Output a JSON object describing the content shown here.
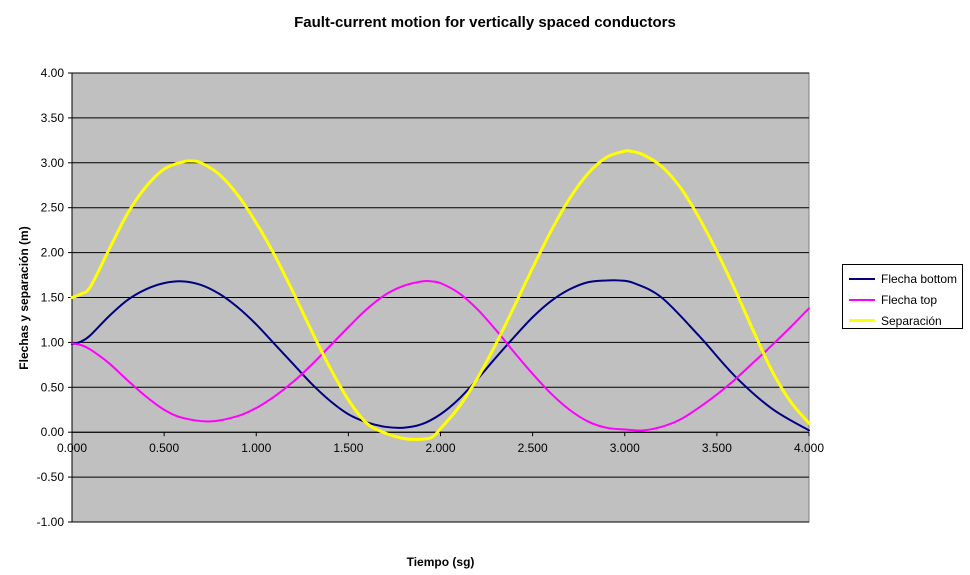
{
  "chart_data": {
    "type": "line",
    "title": "Fault-current motion for vertically spaced conductors",
    "xlabel": "Tiempo (sg)",
    "ylabel": "Flechas y separación (m)",
    "xlim": [
      0,
      4
    ],
    "ylim": [
      -1,
      4
    ],
    "x_ticks": [
      "0.000",
      "0.500",
      "1.000",
      "1.500",
      "2.000",
      "2.500",
      "3.000",
      "3.500",
      "4.000"
    ],
    "y_ticks": [
      "4.00",
      "3.50",
      "3.00",
      "2.50",
      "2.00",
      "1.50",
      "1.00",
      "0.50",
      "0.00",
      "-0.50",
      "-1.00"
    ],
    "grid": "horizontal",
    "background": "#c0c0c0",
    "legend_position": "right",
    "series": [
      {
        "name": "Flecha bottom",
        "color": "#000080",
        "x": [
          0.0,
          0.05,
          0.1,
          0.2,
          0.3,
          0.4,
          0.5,
          0.6,
          0.7,
          0.8,
          0.9,
          1.0,
          1.1,
          1.2,
          1.3,
          1.4,
          1.5,
          1.6,
          1.7,
          1.8,
          1.9,
          2.0,
          2.1,
          2.2,
          2.3,
          2.4,
          2.5,
          2.6,
          2.7,
          2.8,
          2.9,
          2.97,
          3.05,
          3.2,
          3.4,
          3.6,
          3.8,
          4.0
        ],
        "values": [
          0.98,
          1.01,
          1.08,
          1.29,
          1.47,
          1.59,
          1.66,
          1.68,
          1.64,
          1.54,
          1.39,
          1.2,
          0.98,
          0.76,
          0.54,
          0.35,
          0.2,
          0.11,
          0.06,
          0.05,
          0.09,
          0.2,
          0.37,
          0.59,
          0.83,
          1.06,
          1.28,
          1.46,
          1.59,
          1.67,
          1.69,
          1.69,
          1.66,
          1.5,
          1.08,
          0.62,
          0.26,
          0.02
        ]
      },
      {
        "name": "Flecha top",
        "color": "#ff00ff",
        "x": [
          0.0,
          0.05,
          0.1,
          0.2,
          0.3,
          0.4,
          0.5,
          0.6,
          0.75,
          0.9,
          1.0,
          1.1,
          1.2,
          1.3,
          1.4,
          1.5,
          1.6,
          1.7,
          1.8,
          1.9,
          1.95,
          2.0,
          2.1,
          2.2,
          2.3,
          2.4,
          2.5,
          2.6,
          2.7,
          2.8,
          2.9,
          3.0,
          3.1,
          3.2,
          3.3,
          3.4,
          3.5,
          3.6,
          3.7,
          3.8,
          3.9,
          4.0
        ],
        "values": [
          0.99,
          0.97,
          0.92,
          0.77,
          0.58,
          0.4,
          0.25,
          0.16,
          0.12,
          0.18,
          0.27,
          0.4,
          0.56,
          0.75,
          0.96,
          1.17,
          1.37,
          1.53,
          1.63,
          1.68,
          1.68,
          1.66,
          1.55,
          1.37,
          1.14,
          0.89,
          0.65,
          0.43,
          0.25,
          0.12,
          0.05,
          0.03,
          0.02,
          0.06,
          0.14,
          0.27,
          0.42,
          0.59,
          0.78,
          0.97,
          1.17,
          1.38
        ]
      },
      {
        "name": "Separación",
        "color": "#ffff00",
        "x": [
          0.0,
          0.05,
          0.1,
          0.2,
          0.3,
          0.4,
          0.5,
          0.6,
          0.65,
          0.7,
          0.8,
          0.9,
          1.0,
          1.1,
          1.2,
          1.3,
          1.4,
          1.5,
          1.6,
          1.7,
          1.8,
          1.87,
          1.95,
          2.0,
          2.1,
          2.2,
          2.3,
          2.4,
          2.5,
          2.6,
          2.7,
          2.8,
          2.9,
          3.0,
          3.03,
          3.1,
          3.2,
          3.3,
          3.4,
          3.5,
          3.6,
          3.7,
          3.8,
          3.9,
          4.0
        ],
        "values": [
          1.5,
          1.54,
          1.62,
          2.03,
          2.43,
          2.73,
          2.93,
          3.01,
          3.02,
          3.0,
          2.87,
          2.64,
          2.33,
          1.97,
          1.56,
          1.13,
          0.72,
          0.36,
          0.1,
          -0.01,
          -0.07,
          -0.08,
          -0.06,
          0.04,
          0.28,
          0.6,
          0.98,
          1.4,
          1.83,
          2.24,
          2.6,
          2.88,
          3.06,
          3.13,
          3.13,
          3.09,
          2.96,
          2.73,
          2.4,
          2.01,
          1.58,
          1.12,
          0.68,
          0.34,
          0.1
        ]
      }
    ]
  }
}
